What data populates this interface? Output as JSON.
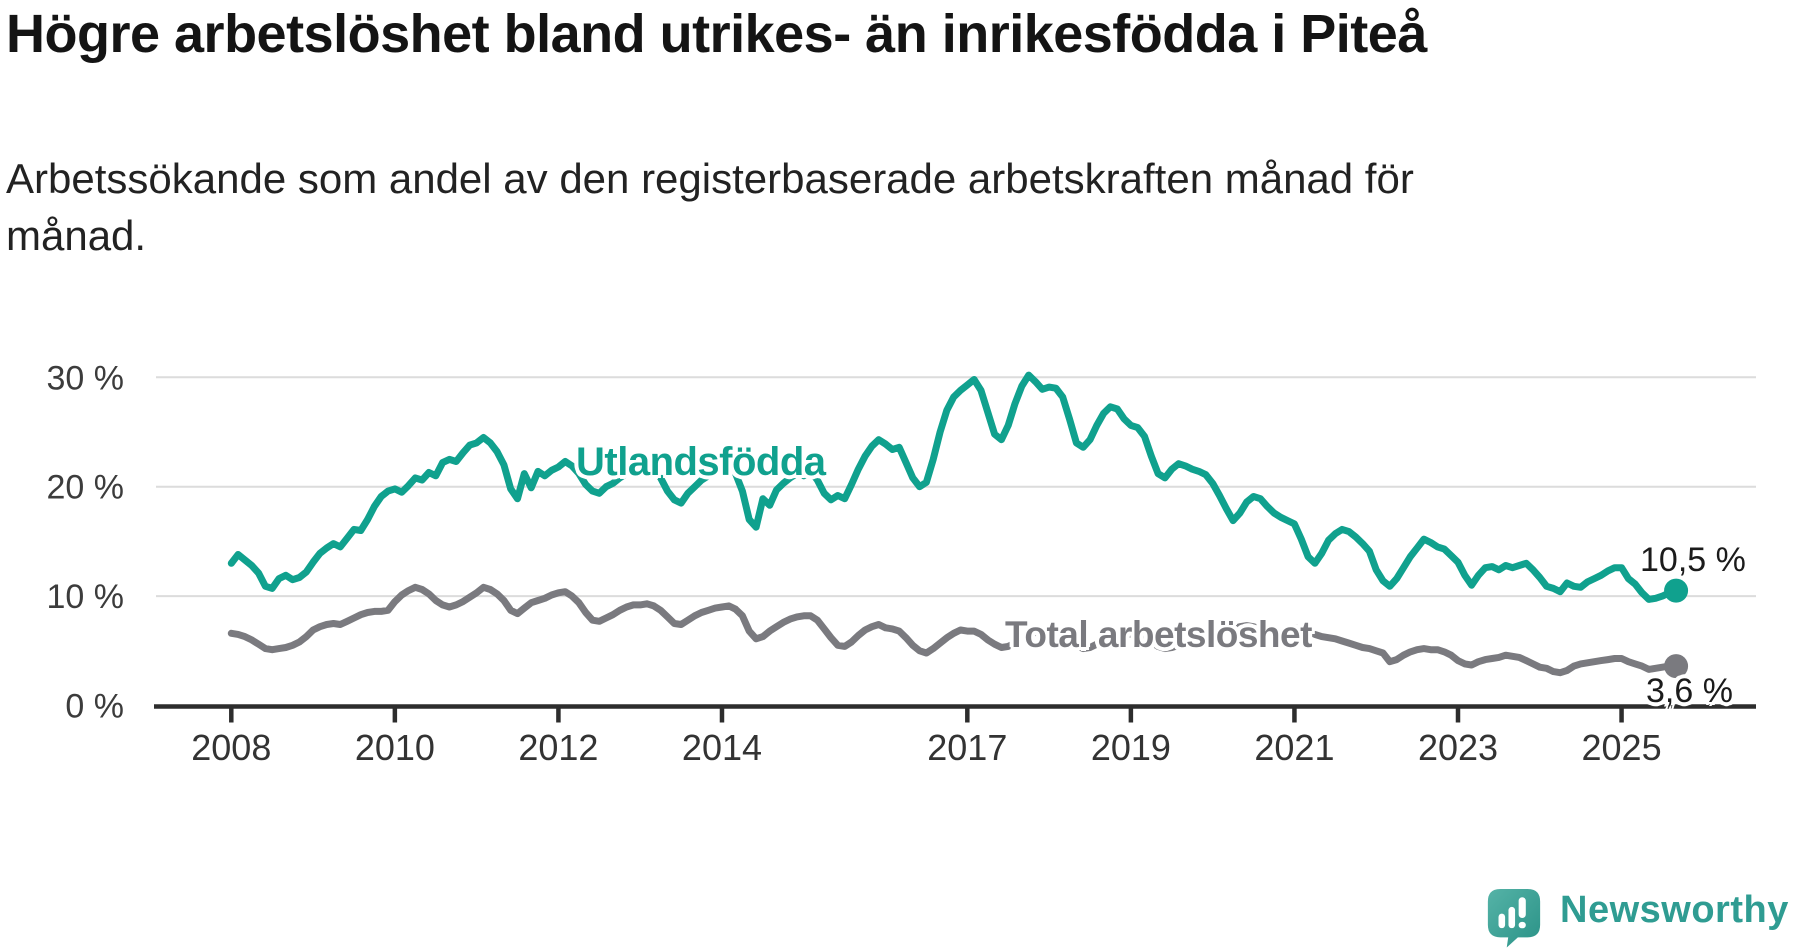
{
  "header": {
    "title": "Högre arbetslöshet bland utrikes- än inrikesfödda i Piteå",
    "subtitle": "Arbetssökande som andel av den registerbaserade arbetskraften månad för\nmånad."
  },
  "footer": {
    "brand": "Newsworthy"
  },
  "colors": {
    "teal": "#10a18e",
    "gray": "#7a7a7f",
    "gridline": "#dcdcdc",
    "axis": "#2d2d2d",
    "tick_label": "#333333",
    "y_label": "#3c3c3c",
    "end_label": "#1b1b1b",
    "logo_teal": "#2f9c92"
  },
  "chart_data": {
    "type": "line",
    "title": "Högre arbetslöshet bland utrikes- än inrikesfödda i Piteå",
    "subtitle": "Arbetssökande som andel av den registerbaserade arbetskraften månad för månad.",
    "frequency": "monthly",
    "x_start": "2008-01",
    "x_end": "2025-09",
    "ylim": [
      0,
      32
    ],
    "grid": "horizontal",
    "legend_position": "inline-labels",
    "y_ticks": [
      {
        "value": 0,
        "label": "0 %"
      },
      {
        "value": 10,
        "label": "10 %"
      },
      {
        "value": 20,
        "label": "20 %"
      },
      {
        "value": 30,
        "label": "30 %"
      }
    ],
    "x_ticks": [
      {
        "year": 2008,
        "label": "2008"
      },
      {
        "year": 2010,
        "label": "2010"
      },
      {
        "year": 2012,
        "label": "2012"
      },
      {
        "year": 2014,
        "label": "2014"
      },
      {
        "year": 2017,
        "label": "2017"
      },
      {
        "year": 2019,
        "label": "2019"
      },
      {
        "year": 2021,
        "label": "2021"
      },
      {
        "year": 2023,
        "label": "2023"
      },
      {
        "year": 2025,
        "label": "2025"
      }
    ],
    "series": [
      {
        "name": "Utlandsfödda",
        "end_label": "10,5 %",
        "end_value": 10.5,
        "color": "#10a18e",
        "values": [
          13.0,
          13.8,
          13.3,
          12.8,
          12.1,
          10.9,
          10.7,
          11.6,
          11.9,
          11.5,
          11.7,
          12.2,
          13.1,
          13.9,
          14.4,
          14.8,
          14.5,
          15.3,
          16.1,
          16.0,
          17.0,
          18.2,
          19.1,
          19.6,
          19.8,
          19.5,
          20.1,
          20.8,
          20.6,
          21.3,
          21.0,
          22.2,
          22.5,
          22.3,
          23.1,
          23.8,
          24.0,
          24.5,
          24.0,
          23.2,
          22.0,
          19.8,
          18.9,
          21.2,
          19.9,
          21.4,
          21.0,
          21.5,
          21.8,
          22.3,
          21.9,
          21.2,
          20.2,
          19.6,
          19.4,
          20.0,
          20.3,
          20.8,
          21.2,
          21.6,
          21.9,
          22.2,
          21.6,
          20.8,
          19.6,
          18.8,
          18.5,
          19.4,
          20.0,
          20.6,
          21.0,
          21.4,
          21.7,
          22.0,
          21.2,
          19.6,
          17.0,
          16.3,
          18.9,
          18.3,
          19.7,
          20.3,
          20.8,
          21.2,
          21.0,
          21.4,
          20.6,
          19.4,
          18.8,
          19.2,
          18.9,
          20.2,
          21.6,
          22.8,
          23.7,
          24.3,
          23.9,
          23.4,
          23.6,
          22.2,
          20.8,
          20.0,
          20.4,
          22.5,
          25.0,
          27.0,
          28.2,
          28.8,
          29.3,
          29.8,
          28.8,
          26.8,
          24.8,
          24.3,
          25.6,
          27.6,
          29.2,
          30.2,
          29.6,
          28.9,
          29.1,
          29.0,
          28.2,
          26.2,
          24.0,
          23.6,
          24.3,
          25.6,
          26.7,
          27.3,
          27.1,
          26.2,
          25.6,
          25.4,
          24.6,
          22.8,
          21.2,
          20.8,
          21.6,
          22.1,
          21.9,
          21.6,
          21.4,
          21.1,
          20.3,
          19.2,
          18.0,
          16.9,
          17.6,
          18.6,
          19.1,
          18.9,
          18.2,
          17.6,
          17.2,
          16.9,
          16.6,
          15.2,
          13.6,
          13.0,
          13.9,
          15.1,
          15.7,
          16.1,
          15.9,
          15.4,
          14.8,
          14.1,
          12.4,
          11.4,
          10.9,
          11.6,
          12.6,
          13.6,
          14.4,
          15.2,
          14.9,
          14.5,
          14.3,
          13.7,
          13.1,
          11.9,
          11.0,
          11.9,
          12.6,
          12.7,
          12.4,
          12.8,
          12.6,
          12.8,
          13.0,
          12.4,
          11.7,
          10.9,
          10.7,
          10.4,
          11.2,
          10.9,
          10.8,
          11.3,
          11.6,
          11.9,
          12.3,
          12.6,
          12.6,
          11.6,
          11.1,
          10.3,
          9.7,
          9.8,
          10.0,
          10.3,
          10.5
        ]
      },
      {
        "name": "Total arbetslöshet",
        "end_label": "3,6 %",
        "end_value": 3.6,
        "color": "#7a7a7f",
        "values": [
          6.6,
          6.5,
          6.3,
          6.0,
          5.6,
          5.2,
          5.1,
          5.2,
          5.3,
          5.5,
          5.8,
          6.3,
          6.9,
          7.2,
          7.4,
          7.5,
          7.4,
          7.7,
          8.0,
          8.3,
          8.5,
          8.6,
          8.6,
          8.7,
          9.5,
          10.1,
          10.5,
          10.8,
          10.6,
          10.2,
          9.6,
          9.2,
          9.0,
          9.2,
          9.5,
          9.9,
          10.3,
          10.8,
          10.6,
          10.2,
          9.6,
          8.7,
          8.4,
          8.9,
          9.4,
          9.6,
          9.8,
          10.1,
          10.3,
          10.4,
          10.0,
          9.4,
          8.5,
          7.8,
          7.7,
          8.0,
          8.3,
          8.7,
          9.0,
          9.2,
          9.2,
          9.3,
          9.1,
          8.7,
          8.1,
          7.5,
          7.4,
          7.8,
          8.2,
          8.5,
          8.7,
          8.9,
          9.0,
          9.1,
          8.8,
          8.2,
          6.8,
          6.1,
          6.3,
          6.8,
          7.2,
          7.6,
          7.9,
          8.1,
          8.2,
          8.2,
          7.8,
          7.0,
          6.2,
          5.5,
          5.4,
          5.8,
          6.4,
          6.9,
          7.2,
          7.4,
          7.1,
          7.0,
          6.8,
          6.2,
          5.5,
          5.0,
          4.8,
          5.2,
          5.7,
          6.2,
          6.6,
          6.9,
          6.8,
          6.8,
          6.5,
          6.0,
          5.6,
          5.3,
          5.4,
          5.7,
          6.1,
          6.4,
          6.7,
          6.9,
          6.9,
          6.8,
          6.5,
          6.0,
          5.5,
          5.2,
          5.3,
          5.6,
          5.9,
          6.1,
          6.3,
          6.5,
          6.5,
          6.4,
          6.2,
          5.8,
          5.4,
          5.2,
          5.3,
          5.5,
          5.7,
          5.9,
          6.1,
          6.3,
          6.4,
          6.5,
          6.8,
          7.0,
          7.2,
          7.3,
          7.2,
          7.0,
          6.9,
          6.8,
          6.8,
          6.9,
          7.1,
          7.0,
          6.8,
          6.5,
          6.3,
          6.2,
          6.1,
          5.9,
          5.7,
          5.5,
          5.3,
          5.2,
          5.0,
          4.8,
          4.0,
          4.2,
          4.6,
          4.9,
          5.1,
          5.2,
          5.1,
          5.1,
          4.9,
          4.6,
          4.1,
          3.8,
          3.7,
          4.0,
          4.2,
          4.3,
          4.4,
          4.6,
          4.5,
          4.4,
          4.1,
          3.8,
          3.5,
          3.4,
          3.1,
          3.0,
          3.2,
          3.6,
          3.8,
          3.9,
          4.0,
          4.1,
          4.2,
          4.3,
          4.3,
          4.0,
          3.8,
          3.6,
          3.3,
          3.4,
          3.5,
          3.6,
          3.6
        ]
      }
    ]
  }
}
